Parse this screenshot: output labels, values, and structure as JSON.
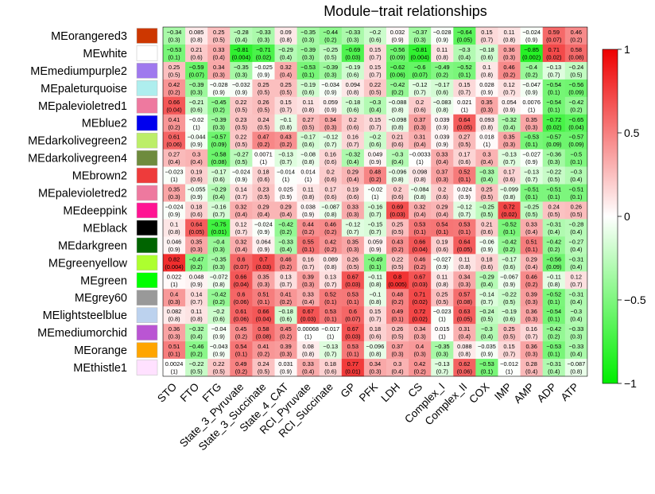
{
  "chart_data": {
    "type": "heatmap",
    "title": "Module−trait relationships",
    "rows": [
      "MEorangered3",
      "MEwhite",
      "MEmediumpurple2",
      "MEpaleturquoise",
      "MEpalevioletred1",
      "MEblue2",
      "MEdarkolivegreen2",
      "MEdarkolivegreen4",
      "MEbrown2",
      "MEpalevioletred2",
      "MEdeeppink",
      "MEblack",
      "MEdarkgreen",
      "MEgreenyellow",
      "MEgreen",
      "MEgrey60",
      "MElightsteelblue",
      "MEmediumorchid",
      "MEorange",
      "MEthistle1"
    ],
    "row_colors": [
      "#cd3700",
      "#ffffff",
      "#9f79ee",
      "#aeeeee",
      "#ee799f",
      "#0000ee",
      "#bcee68",
      "#6e8b3d",
      "#ee3b3b",
      "#ee799f",
      "#ff1493",
      "#000000",
      "#006400",
      "#adff2f",
      "#00ff00",
      "#999999",
      "#bcd2ee",
      "#ba55d3",
      "#ffa500",
      "#ffe1ff"
    ],
    "columns": [
      "STO",
      "FTO",
      "FTG",
      "State_3_Pyruvate",
      "State_3_Succinate",
      "State_4_CAT",
      "RCI_Pyruvate",
      "RCI_Succinate",
      "GP",
      "PFK",
      "LDH",
      "CS",
      "Complex_I",
      "Complex_II",
      "COX",
      "IMP",
      "AMP",
      "ADP",
      "ATP"
    ],
    "correlations": [
      [
        -0.34,
        0.085,
        0.25,
        -0.28,
        -0.33,
        0.09,
        -0.35,
        -0.44,
        -0.33,
        -0.2,
        0.032,
        -0.37,
        -0.028,
        -0.64,
        0.15,
        0.11,
        -0.024,
        0.59,
        0.46
      ],
      [
        -0.53,
        0.21,
        0.33,
        -0.81,
        -0.71,
        -0.29,
        -0.39,
        -0.25,
        -0.69,
        0.15,
        -0.56,
        -0.81,
        0.11,
        -0.3,
        -0.18,
        0.36,
        -0.85,
        0.71,
        0.58
      ],
      [
        0.25,
        -0.59,
        0.34,
        -0.35,
        -0.025,
        0.32,
        -0.53,
        -0.39,
        -0.19,
        0.15,
        -0.62,
        -0.6,
        -0.49,
        -0.52,
        0.1,
        0.46,
        -0.4,
        -0.13,
        -0.24
      ],
      [
        0.42,
        -0.39,
        -0.028,
        -0.032,
        0.25,
        0.25,
        -0.19,
        -0.034,
        0.094,
        0.22,
        -0.42,
        -0.12,
        -0.17,
        0.15,
        0.028,
        0.12,
        -0.047,
        -0.54,
        -0.56
      ],
      [
        0.66,
        -0.21,
        -0.45,
        0.22,
        0.26,
        0.15,
        0.11,
        0.059,
        -0.18,
        -0.3,
        -0.088,
        0.2,
        -0.083,
        0.021,
        0.35,
        0.054,
        0.0076,
        -0.54,
        -0.42
      ],
      [
        0.41,
        -0.02,
        -0.39,
        0.23,
        0.24,
        -0.1,
        0.27,
        0.34,
        0.2,
        0.15,
        -0.098,
        0.37,
        0.039,
        0.64,
        0.093,
        -0.32,
        0.35,
        -0.72,
        -0.65
      ],
      [
        0.61,
        -0.044,
        -0.57,
        0.22,
        0.47,
        0.43,
        -0.17,
        -0.12,
        0.16,
        -0.2,
        0.21,
        0.31,
        0.039,
        0.27,
        0.018,
        0.35,
        -0.53,
        -0.57,
        -0.57
      ],
      [
        0.27,
        0.3,
        -0.58,
        -0.27,
        0.0071,
        -0.13,
        -0.08,
        0.16,
        -0.32,
        0.049,
        -0.3,
        -0.0033,
        0.33,
        0.17,
        0.3,
        -0.13,
        -0.027,
        -0.36,
        -0.5
      ],
      [
        -0.023,
        0.19,
        -0.17,
        -0.024,
        0.18,
        -0.014,
        0.014,
        0.2,
        0.29,
        0.48,
        -0.096,
        0.098,
        0.37,
        0.52,
        -0.33,
        0.17,
        -0.13,
        -0.22,
        -0.3
      ],
      [
        0.35,
        -0.055,
        -0.29,
        0.14,
        0.23,
        0.025,
        0.11,
        0.17,
        0.19,
        -0.02,
        0.2,
        -0.084,
        0.2,
        0.024,
        0.25,
        -0.099,
        -0.51,
        -0.51,
        -0.51
      ],
      [
        -0.024,
        0.18,
        -0.16,
        0.32,
        0.29,
        0.29,
        0.038,
        -0.087,
        0.33,
        -0.16,
        0.69,
        0.32,
        0.29,
        -0.12,
        -0.25,
        0.72,
        -0.25,
        0.24,
        0.26
      ],
      [
        0.1,
        0.64,
        -0.75,
        0.12,
        -0.024,
        -0.42,
        0.44,
        0.46,
        -0.12,
        -0.15,
        0.25,
        0.53,
        0.54,
        0.53,
        0.21,
        -0.52,
        0.33,
        -0.31,
        -0.28
      ],
      [
        0.046,
        0.35,
        -0.4,
        0.32,
        0.064,
        -0.33,
        0.55,
        0.42,
        0.35,
        0.059,
        0.43,
        0.66,
        0.19,
        0.64,
        -0.06,
        -0.42,
        0.51,
        -0.42,
        -0.27
      ],
      [
        0.82,
        -0.47,
        -0.35,
        0.6,
        0.7,
        0.46,
        0.16,
        0.089,
        0.26,
        -0.49,
        0.22,
        0.46,
        -0.027,
        0.11,
        0.18,
        -0.17,
        0.29,
        -0.56,
        -0.31
      ],
      [
        0.022,
        0.048,
        -0.072,
        0.66,
        0.35,
        0.13,
        0.39,
        0.13,
        0.67,
        -0.11,
        0.8,
        0.67,
        0.11,
        0.34,
        -0.29,
        -0.067,
        0.46,
        -0.11,
        0.12
      ],
      [
        0.4,
        0.14,
        -0.42,
        0.6,
        0.51,
        0.41,
        0.33,
        0.52,
        0.53,
        -0.1,
        0.48,
        0.71,
        0.25,
        0.57,
        -0.14,
        -0.22,
        0.39,
        -0.52,
        -0.31
      ],
      [
        0.082,
        0.11,
        -0.2,
        0.61,
        0.66,
        -0.18,
        0.67,
        0.53,
        0.6,
        0.15,
        0.49,
        0.72,
        -0.023,
        0.63,
        -0.24,
        -0.19,
        0.36,
        -0.54,
        -0.3
      ],
      [
        0.36,
        -0.32,
        -0.04,
        0.45,
        0.58,
        0.45,
        0.00068,
        -0.017,
        0.67,
        0.18,
        0.26,
        0.34,
        0.015,
        0.31,
        -0.3,
        0.25,
        0.16,
        -0.42,
        -0.33
      ],
      [
        0.51,
        -0.46,
        -0.043,
        0.54,
        0.41,
        0.39,
        0.08,
        -0.13,
        0.53,
        -0.096,
        0.37,
        0.4,
        -0.35,
        0.088,
        -0.035,
        0.15,
        0.36,
        -0.53,
        -0.33
      ],
      [
        0.0024,
        -0.22,
        0.22,
        0.49,
        0.24,
        0.031,
        0.33,
        0.18,
        0.77,
        0.34,
        0.3,
        0.42,
        -0.13,
        0.62,
        -0.53,
        -0.012,
        0.28,
        -0.31,
        -0.087
      ]
    ],
    "pvalues": [
      [
        "(0.3)",
        "(0.8)",
        "(0.5)",
        "(0.4)",
        "(0.3)",
        "(0.8)",
        "(0.3)",
        "(0.2)",
        "(0.3)",
        "(0.6)",
        "(0.9)",
        "(0.3)",
        "(0.9)",
        "(0.05)",
        "(0.7)",
        "(0.8)",
        "(0.9)",
        "(0.07)",
        "(0.2)"
      ],
      [
        "(0.1)",
        "(0.6)",
        "(0.4)",
        "(0.004)",
        "(0.02)",
        "(0.4)",
        "(0.3)",
        "(0.5)",
        "(0.03)",
        "(0.7)",
        "(0.09)",
        "(0.004)",
        "(0.8)",
        "(0.4)",
        "(0.6)",
        "(0.3)",
        "(0.002)",
        "(0.02)",
        "(0.08)"
      ],
      [
        "(0.5)",
        "(0.07)",
        "(0.3)",
        "(0.3)",
        "(0.9)",
        "(0.4)",
        "(0.1)",
        "(0.3)",
        "(0.6)",
        "(0.7)",
        "(0.06)",
        "(0.07)",
        "(0.2)",
        "(0.1)",
        "(0.8)",
        "(0.2)",
        "(0.2)",
        "(0.7)",
        "(0.5)"
      ],
      [
        "(0.2)",
        "(0.3)",
        "(0.9)",
        "(0.9)",
        "(0.5)",
        "(0.5)",
        "(0.6)",
        "(0.9)",
        "(0.8)",
        "(0.5)",
        "(0.2)",
        "(0.7)",
        "(0.6)",
        "(0.7)",
        "(0.9)",
        "(0.7)",
        "(0.9)",
        "(0.1)",
        "(0.09)"
      ],
      [
        "(0.04)",
        "(0.6)",
        "(0.2)",
        "(0.5)",
        "(0.5)",
        "(0.7)",
        "(0.8)",
        "(0.9)",
        "(0.6)",
        "(0.4)",
        "(0.8)",
        "(0.6)",
        "(0.8)",
        "(1)",
        "(0.3)",
        "(0.9)",
        "(1)",
        "(0.1)",
        "(0.2)"
      ],
      [
        "(0.2)",
        "(1)",
        "(0.3)",
        "(0.5)",
        "(0.5)",
        "(0.8)",
        "(0.5)",
        "(0.3)",
        "(0.6)",
        "(0.7)",
        "(0.8)",
        "(0.3)",
        "(0.9)",
        "(0.05)",
        "(0.8)",
        "(0.4)",
        "(0.3)",
        "(0.02)",
        "(0.04)"
      ],
      [
        "(0.06)",
        "(0.9)",
        "(0.09)",
        "(0.5)",
        "(0.2)",
        "(0.2)",
        "(0.6)",
        "(0.7)",
        "(0.7)",
        "(0.6)",
        "(0.6)",
        "(0.4)",
        "(0.9)",
        "(0.5)",
        "(1)",
        "(0.3)",
        "(0.1)",
        "(0.09)",
        "(0.09)"
      ],
      [
        "(0.4)",
        "(0.4)",
        "(0.08)",
        "(0.5)",
        "(1)",
        "(0.7)",
        "(0.8)",
        "(0.6)",
        "(0.4)",
        "(0.9)",
        "(0.4)",
        "(1)",
        "(0.4)",
        "(0.6)",
        "(0.4)",
        "(0.7)",
        "(0.9)",
        "(0.3)",
        "(0.1)"
      ],
      [
        "(1)",
        "(0.6)",
        "(0.6)",
        "(0.9)",
        "(0.6)",
        "(1)",
        "(1)",
        "(0.6)",
        "(0.4)",
        "(0.2)",
        "(0.8)",
        "(0.8)",
        "(0.3)",
        "(0.1)",
        "(0.4)",
        "(0.6)",
        "(0.7)",
        "(0.5)",
        "(0.4)"
      ],
      [
        "(0.3)",
        "(0.9)",
        "(0.4)",
        "(0.7)",
        "(0.5)",
        "(0.9)",
        "(0.8)",
        "(0.6)",
        "(0.6)",
        "(1)",
        "(0.6)",
        "(0.8)",
        "(0.6)",
        "(0.9)",
        "(0.5)",
        "(0.8)",
        "(0.1)",
        "(0.1)",
        "(0.1)"
      ],
      [
        "(0.9)",
        "(0.6)",
        "(0.7)",
        "(0.4)",
        "(0.4)",
        "(0.4)",
        "(0.9)",
        "(0.8)",
        "(0.3)",
        "(0.7)",
        "(0.03)",
        "(0.4)",
        "(0.4)",
        "(0.7)",
        "(0.5)",
        "(0.02)",
        "(0.5)",
        "(0.5)",
        "(0.5)"
      ],
      [
        "(0.8)",
        "(0.05)",
        "(0.01)",
        "(0.7)",
        "(0.9)",
        "(0.2)",
        "(0.2)",
        "(0.2)",
        "(0.7)",
        "(0.7)",
        "(0.5)",
        "(0.1)",
        "(0.1)",
        "(0.1)",
        "(0.6)",
        "(0.1)",
        "(0.4)",
        "(0.4)",
        "(0.4)"
      ],
      [
        "(0.9)",
        "(0.3)",
        "(0.3)",
        "(0.4)",
        "(0.9)",
        "(0.4)",
        "(0.1)",
        "(0.2)",
        "(0.3)",
        "(0.9)",
        "(0.2)",
        "(0.04)",
        "(0.6)",
        "(0.05)",
        "(0.9)",
        "(0.2)",
        "(0.1)",
        "(0.2)",
        "(0.4)"
      ],
      [
        "(0.004)",
        "(0.2)",
        "(0.3)",
        "(0.07)",
        "(0.03)",
        "(0.2)",
        "(0.7)",
        "(0.8)",
        "(0.5)",
        "(0.1)",
        "(0.5)",
        "(0.2)",
        "(0.9)",
        "(0.8)",
        "(0.6)",
        "(0.6)",
        "(0.4)",
        "(0.09)",
        "(0.4)"
      ],
      [
        "(1)",
        "(0.9)",
        "(0.8)",
        "(0.04)",
        "(0.3)",
        "(0.7)",
        "(0.3)",
        "(0.7)",
        "(0.03)",
        "(0.8)",
        "(0.005)",
        "(0.03)",
        "(0.8)",
        "(0.3)",
        "(0.4)",
        "(0.9)",
        "(0.2)",
        "(0.8)",
        "(0.7)"
      ],
      [
        "(0.3)",
        "(0.7)",
        "(0.2)",
        "(0.06)",
        "(0.1)",
        "(0.2)",
        "(0.4)",
        "(0.1)",
        "(0.1)",
        "(0.8)",
        "(0.2)",
        "(0.02)",
        "(0.5)",
        "(0.08)",
        "(0.7)",
        "(0.5)",
        "(0.3)",
        "(0.1)",
        "(0.4)"
      ],
      [
        "(0.8)",
        "(0.8)",
        "(0.6)",
        "(0.06)",
        "(0.04)",
        "(0.6)",
        "(0.03)",
        "(0.1)",
        "(0.07)",
        "(0.7)",
        "(0.1)",
        "(0.02)",
        "(1)",
        "(0.05)",
        "(0.5)",
        "(0.6)",
        "(0.3)",
        "(0.1)",
        "(0.4)"
      ],
      [
        "(0.3)",
        "(0.4)",
        "(0.9)",
        "(0.2)",
        "(0.08)",
        "(0.2)",
        "(1)",
        "(1)",
        "(0.03)",
        "(0.6)",
        "(0.5)",
        "(0.3)",
        "(1)",
        "(0.4)",
        "(0.4)",
        "(0.5)",
        "(0.7)",
        "(0.2)",
        "(0.3)"
      ],
      [
        "(0.1)",
        "(0.2)",
        "(0.9)",
        "(0.1)",
        "(0.2)",
        "(0.3)",
        "(0.8)",
        "(0.7)",
        "(0.1)",
        "(0.8)",
        "(0.3)",
        "(0.3)",
        "(0.3)",
        "(0.8)",
        "(0.9)",
        "(0.7)",
        "(0.3)",
        "(0.1)",
        "(0.4)"
      ],
      [
        "(1)",
        "(0.5)",
        "(0.5)",
        "(0.2)",
        "(0.5)",
        "(0.9)",
        "(0.4)",
        "(0.6)",
        "(0.01)",
        "(0.3)",
        "(0.4)",
        "(0.2)",
        "(0.7)",
        "(0.06)",
        "(0.1)",
        "(1)",
        "(0.4)",
        "(0.4)",
        "(0.8)"
      ]
    ],
    "colorbar": {
      "range": [
        -1,
        1
      ],
      "ticks": [
        "1",
        "0.5",
        "0",
        "−0.5",
        "−1"
      ],
      "tick_values": [
        1,
        0.5,
        0,
        -0.5,
        -1
      ],
      "low_color": "#00ee00",
      "mid_color": "#ffffff",
      "high_color": "#ee0000"
    }
  }
}
